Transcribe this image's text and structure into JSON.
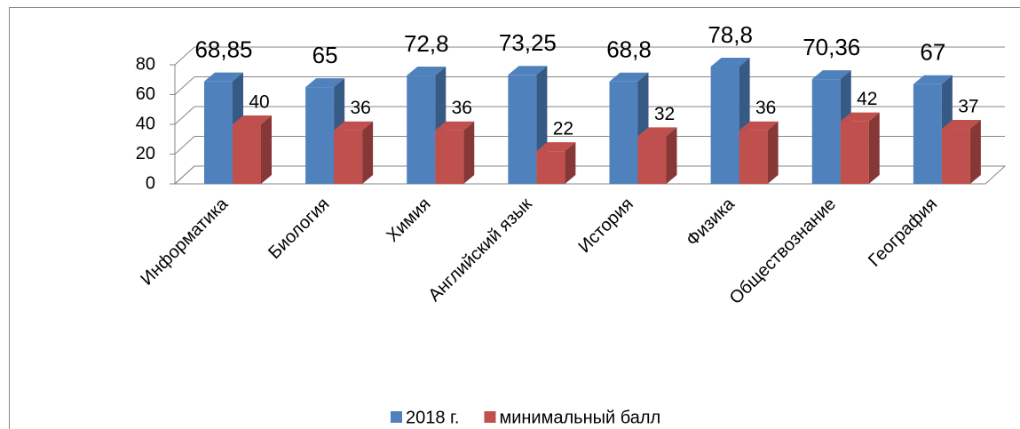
{
  "chart_data": {
    "type": "bar3d",
    "categories": [
      "Информатика",
      "Биология",
      "Химия",
      "Английский язык",
      "История",
      "Физика",
      "Обществознание",
      "География"
    ],
    "series": [
      {
        "name": "2018 г.",
        "color": "#4f81bd",
        "values": [
          68.85,
          65,
          72.8,
          73.25,
          68.8,
          78.8,
          70.36,
          67
        ],
        "value_labels": [
          "68,85",
          "65",
          "72,8",
          "73,25",
          "68,8",
          "78,8",
          "70,36",
          "67"
        ]
      },
      {
        "name": "минимальный балл",
        "color": "#c0504d",
        "values": [
          40,
          36,
          36,
          22,
          32,
          36,
          42,
          37
        ]
      }
    ],
    "ylim": [
      0,
      80
    ],
    "yticks": [
      0,
      20,
      40,
      60,
      80
    ],
    "grid": true,
    "legend": "bottom"
  }
}
